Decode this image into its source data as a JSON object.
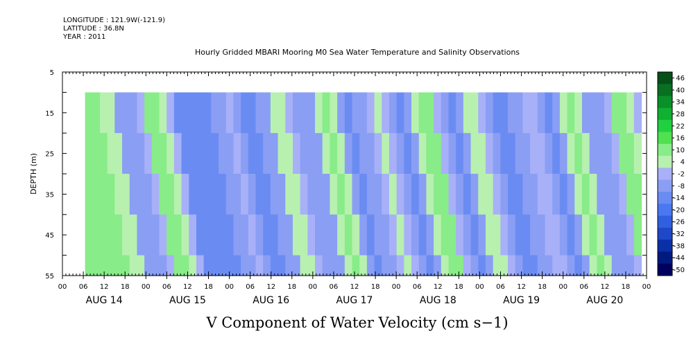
{
  "meta": {
    "longitude": "LONGITUDE : 121.9W(-121.9)",
    "latitude": "LATITUDE : 36.8N",
    "year": "YEAR : 2011"
  },
  "chart_data": {
    "type": "heatmap",
    "title": "Hourly Gridded MBARI Mooring M0 Sea Water Temperature and Salinity Observations",
    "xlabel": "V Component of Water Velocity (cm s−1)",
    "ylabel": "DEPTH (m)",
    "ylim": [
      55,
      5
    ],
    "y_ticks": [
      5,
      15,
      25,
      35,
      45,
      55
    ],
    "data_depth_range": [
      10,
      55
    ],
    "x_hour_labels": [
      "00",
      "06",
      "12",
      "18",
      "00",
      "06",
      "12",
      "18",
      "00",
      "06",
      "12",
      "18",
      "00",
      "06",
      "12",
      "18",
      "00",
      "06",
      "12",
      "18",
      "00",
      "06",
      "12",
      "18",
      "00",
      "06",
      "12",
      "18",
      "00"
    ],
    "x_day_labels": [
      "AUG 14",
      "AUG 15",
      "AUG 16",
      "AUG 17",
      "AUG 18",
      "AUG 19",
      "AUG 20"
    ],
    "time_range_hours": [
      0,
      168
    ],
    "data_start_hour": 6.5,
    "data_end_hour": 166.5,
    "colorbar_levels": [
      -50,
      -44,
      -38,
      -32,
      -26,
      -20,
      -14,
      -8,
      -2,
      4,
      10,
      16,
      22,
      28,
      34,
      40,
      46
    ],
    "colorbar_labels": [
      "46",
      "40",
      "34",
      "28",
      "22",
      "16",
      "10",
      "4",
      "-2",
      "-8",
      "-14",
      "-20",
      "-26",
      "-32",
      "-38",
      "-44",
      "-50"
    ],
    "colorbar_colors": [
      "#000060",
      "#001a80",
      "#0a30a8",
      "#1e48c8",
      "#3060e0",
      "#4a78f0",
      "#6a8cf2",
      "#8a9ef4",
      "#a8b0f8",
      "#b8f0b0",
      "#88ec88",
      "#50e050",
      "#20d040",
      "#10b030",
      "#0a9028",
      "#087020",
      "#045018"
    ],
    "column_values": [
      10,
      12,
      8,
      4,
      -4,
      -8,
      -6,
      2,
      12,
      14,
      9,
      -2,
      -10,
      -12,
      -14,
      -10,
      -12,
      -8,
      -4,
      2,
      -6,
      -10,
      -12,
      -8,
      -4,
      4,
      8,
      -2,
      -6,
      -8,
      -4,
      6,
      10,
      4,
      -6,
      -10,
      -8,
      -4,
      2,
      8,
      -2,
      -8,
      -10,
      -6,
      4,
      12,
      10,
      2,
      -8,
      -10,
      -4,
      4,
      8,
      2,
      -6,
      -10,
      -12,
      -8,
      -4,
      2,
      -2,
      -6,
      -10,
      -8,
      6,
      10,
      4,
      -4,
      -8,
      -6,
      2,
      10,
      14,
      8,
      -2
    ]
  }
}
